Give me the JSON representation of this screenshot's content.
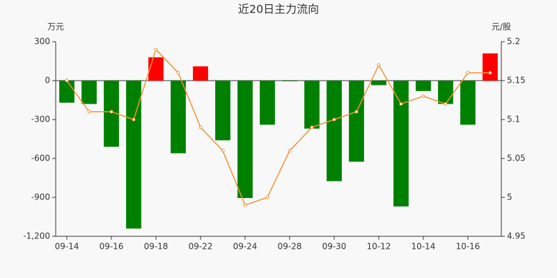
{
  "chart_data": {
    "type": "bar",
    "title": "近20日主力流向",
    "y_label": "万元",
    "y2_label": "元/股",
    "categories": [
      "09-14",
      null,
      "09-16",
      null,
      "09-18",
      null,
      "09-22",
      null,
      "09-24",
      null,
      "09-28",
      null,
      "09-30",
      null,
      "10-12",
      null,
      "10-14",
      null,
      "10-16",
      null
    ],
    "series": [
      {
        "type": "bar",
        "positive_color": "#ff0000",
        "negative_color": "#008000",
        "values": [
          -170,
          -180,
          -510,
          -1140,
          180,
          -560,
          110,
          -460,
          -905,
          -340,
          -5,
          -370,
          -775,
          -625,
          -35,
          -970,
          -80,
          -180,
          -340,
          210
        ]
      },
      {
        "type": "line",
        "axis": "y2",
        "color": "#f0923a",
        "values": [
          5.15,
          5.11,
          5.11,
          5.1,
          5.19,
          5.16,
          5.09,
          5.06,
          4.99,
          5.0,
          5.06,
          5.09,
          5.1,
          5.11,
          5.17,
          5.12,
          5.13,
          5.12,
          5.16,
          5.16
        ]
      }
    ],
    "ylim": [
      -1200,
      300
    ],
    "yticks": [
      300,
      0,
      -300,
      -600,
      -900,
      {
        "value": -1200,
        "label": "-1,200"
      }
    ],
    "y2lim": [
      4.95,
      5.2
    ],
    "y2ticks": [
      5.2,
      5.15,
      5.1,
      5.05,
      5,
      4.95
    ],
    "grid": false
  }
}
